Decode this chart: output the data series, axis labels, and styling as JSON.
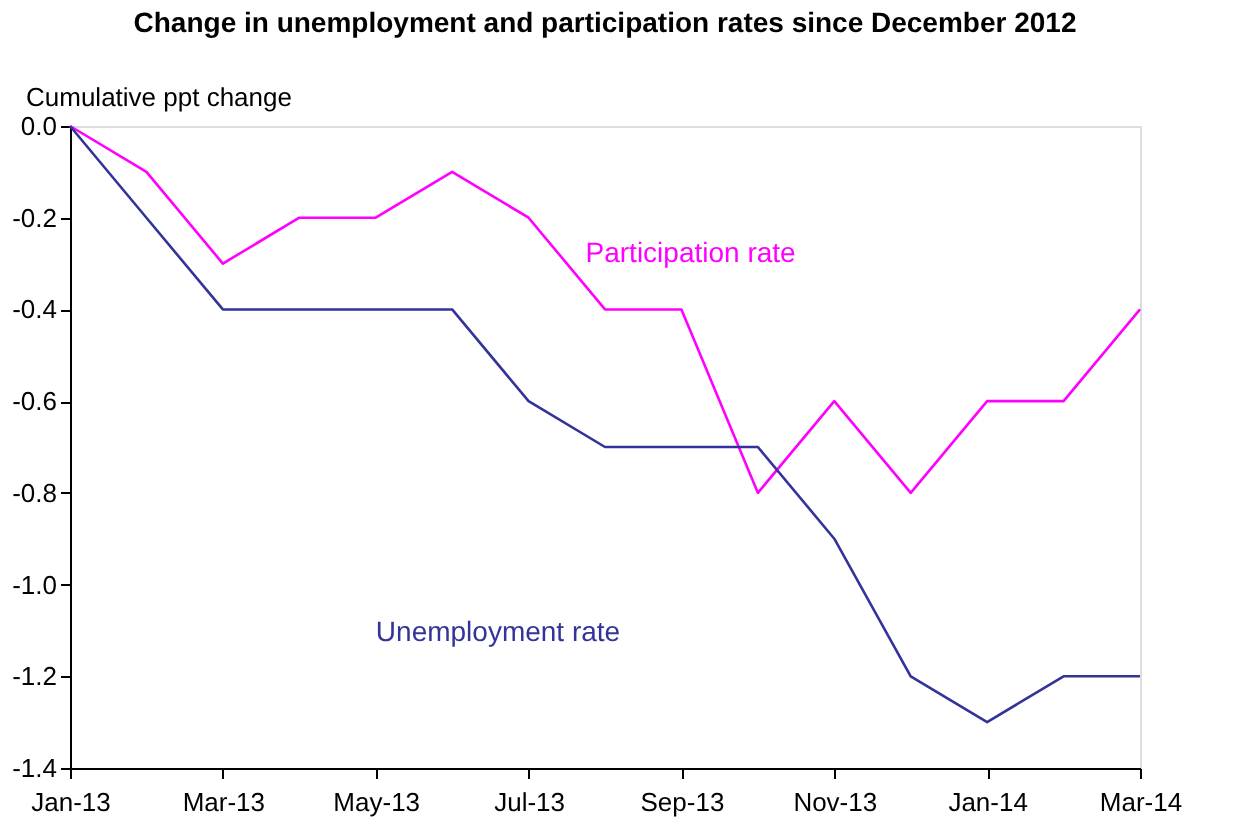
{
  "chart_data": {
    "type": "line",
    "title": "Change in unemployment and participation rates since December 2012",
    "ylabel": "Cumulative ppt change",
    "categories": [
      "Jan-13",
      null,
      "Mar-13",
      null,
      "May-13",
      null,
      "Jul-13",
      null,
      "Sep-13",
      null,
      "Nov-13",
      null,
      "Jan-14",
      null,
      "Mar-14"
    ],
    "series": [
      {
        "name": "Participation rate",
        "color": "#ff00ff",
        "values": [
          0,
          -0.1,
          -0.3,
          -0.2,
          -0.2,
          -0.1,
          -0.2,
          -0.4,
          -0.4,
          -0.8,
          -0.6,
          -0.8,
          -0.6,
          -0.6,
          -0.4
        ]
      },
      {
        "name": "Unemployment rate",
        "color": "#333399",
        "values": [
          0,
          -0.2,
          -0.4,
          -0.4,
          -0.4,
          -0.4,
          -0.6,
          -0.7,
          -0.7,
          -0.7,
          -0.9,
          -1.2,
          -1.3,
          -1.2,
          -1.2
        ]
      }
    ],
    "ylim": [
      -1.4,
      0
    ],
    "yticks": [
      {
        "value": 0,
        "label": "0.0"
      },
      {
        "value": -0.2,
        "label": "-0.2"
      },
      {
        "value": -0.4,
        "label": "-0.4"
      },
      {
        "value": -0.6,
        "label": "-0.6"
      },
      {
        "value": -0.8,
        "label": "-0.8"
      },
      {
        "value": -1.0,
        "label": "-1.0"
      },
      {
        "value": -1.2,
        "label": "-1.2"
      },
      {
        "value": -1.4,
        "label": "-1.4"
      }
    ],
    "grid": false,
    "marker": "none",
    "line_style": "solid"
  }
}
